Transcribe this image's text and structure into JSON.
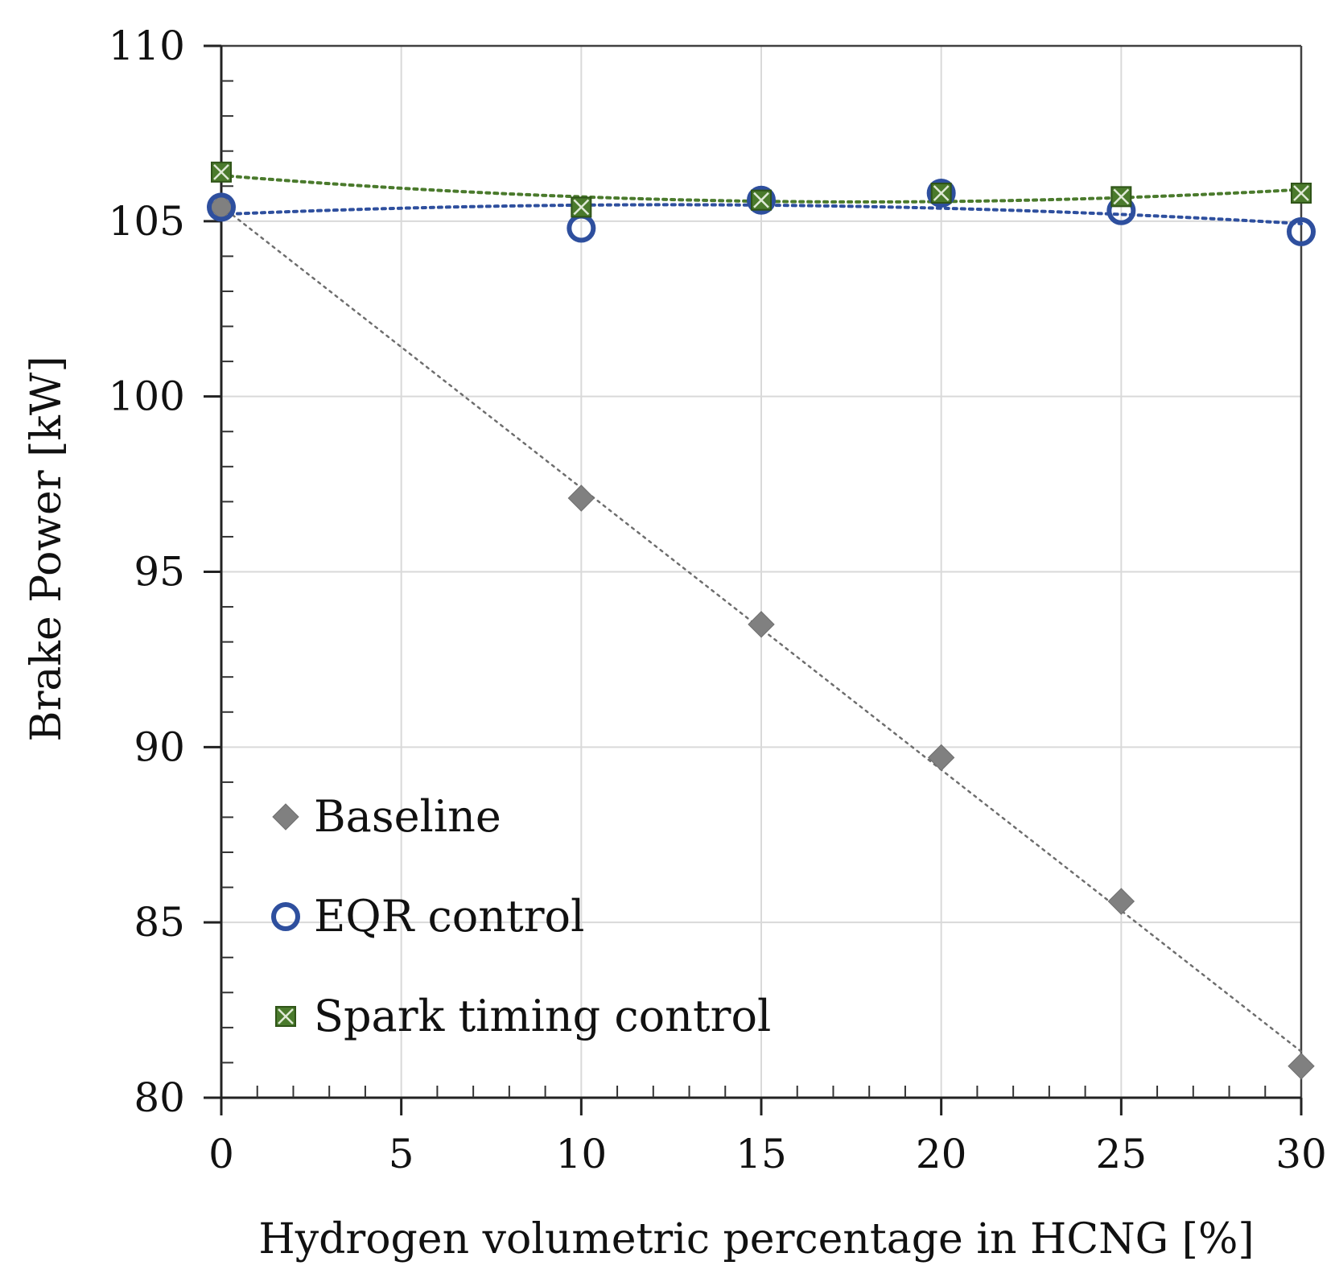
{
  "chart_data": {
    "type": "scatter",
    "title": "",
    "xlabel": "Hydrogen volumetric percentage in HCNG [%]",
    "ylabel": "Brake Power [kW]",
    "xlim": [
      0,
      30
    ],
    "ylim": [
      80,
      110
    ],
    "x_ticks": [
      0,
      5,
      10,
      15,
      20,
      25,
      30
    ],
    "y_ticks": [
      80,
      85,
      90,
      95,
      100,
      105,
      110
    ],
    "x_tick_labels": [
      "0",
      "5",
      "10",
      "15",
      "20",
      "25",
      "30"
    ],
    "y_tick_labels": [
      "80",
      "85",
      "90",
      "95",
      "100",
      "105",
      "110"
    ],
    "grid": true,
    "legend_position": "bottom-left",
    "series": [
      {
        "name": "Baseline",
        "marker": "diamond",
        "color": "#808080",
        "x": [
          0,
          10,
          15,
          20,
          25,
          30
        ],
        "y": [
          105.4,
          97.1,
          93.5,
          89.7,
          85.6,
          80.9
        ],
        "trendline": "linear"
      },
      {
        "name": "EQR control",
        "marker": "open-circle",
        "color": "#2E4F9E",
        "x": [
          0,
          10,
          15,
          20,
          25,
          30
        ],
        "y": [
          105.4,
          104.8,
          105.6,
          105.8,
          105.3,
          104.7
        ],
        "trendline": "polynomial"
      },
      {
        "name": "Spark timing control",
        "marker": "square-x",
        "color": "#4A7A2C",
        "x": [
          0,
          10,
          15,
          20,
          25,
          30
        ],
        "y": [
          106.4,
          105.4,
          105.6,
          105.8,
          105.7,
          105.8
        ],
        "trendline": "polynomial"
      }
    ]
  }
}
